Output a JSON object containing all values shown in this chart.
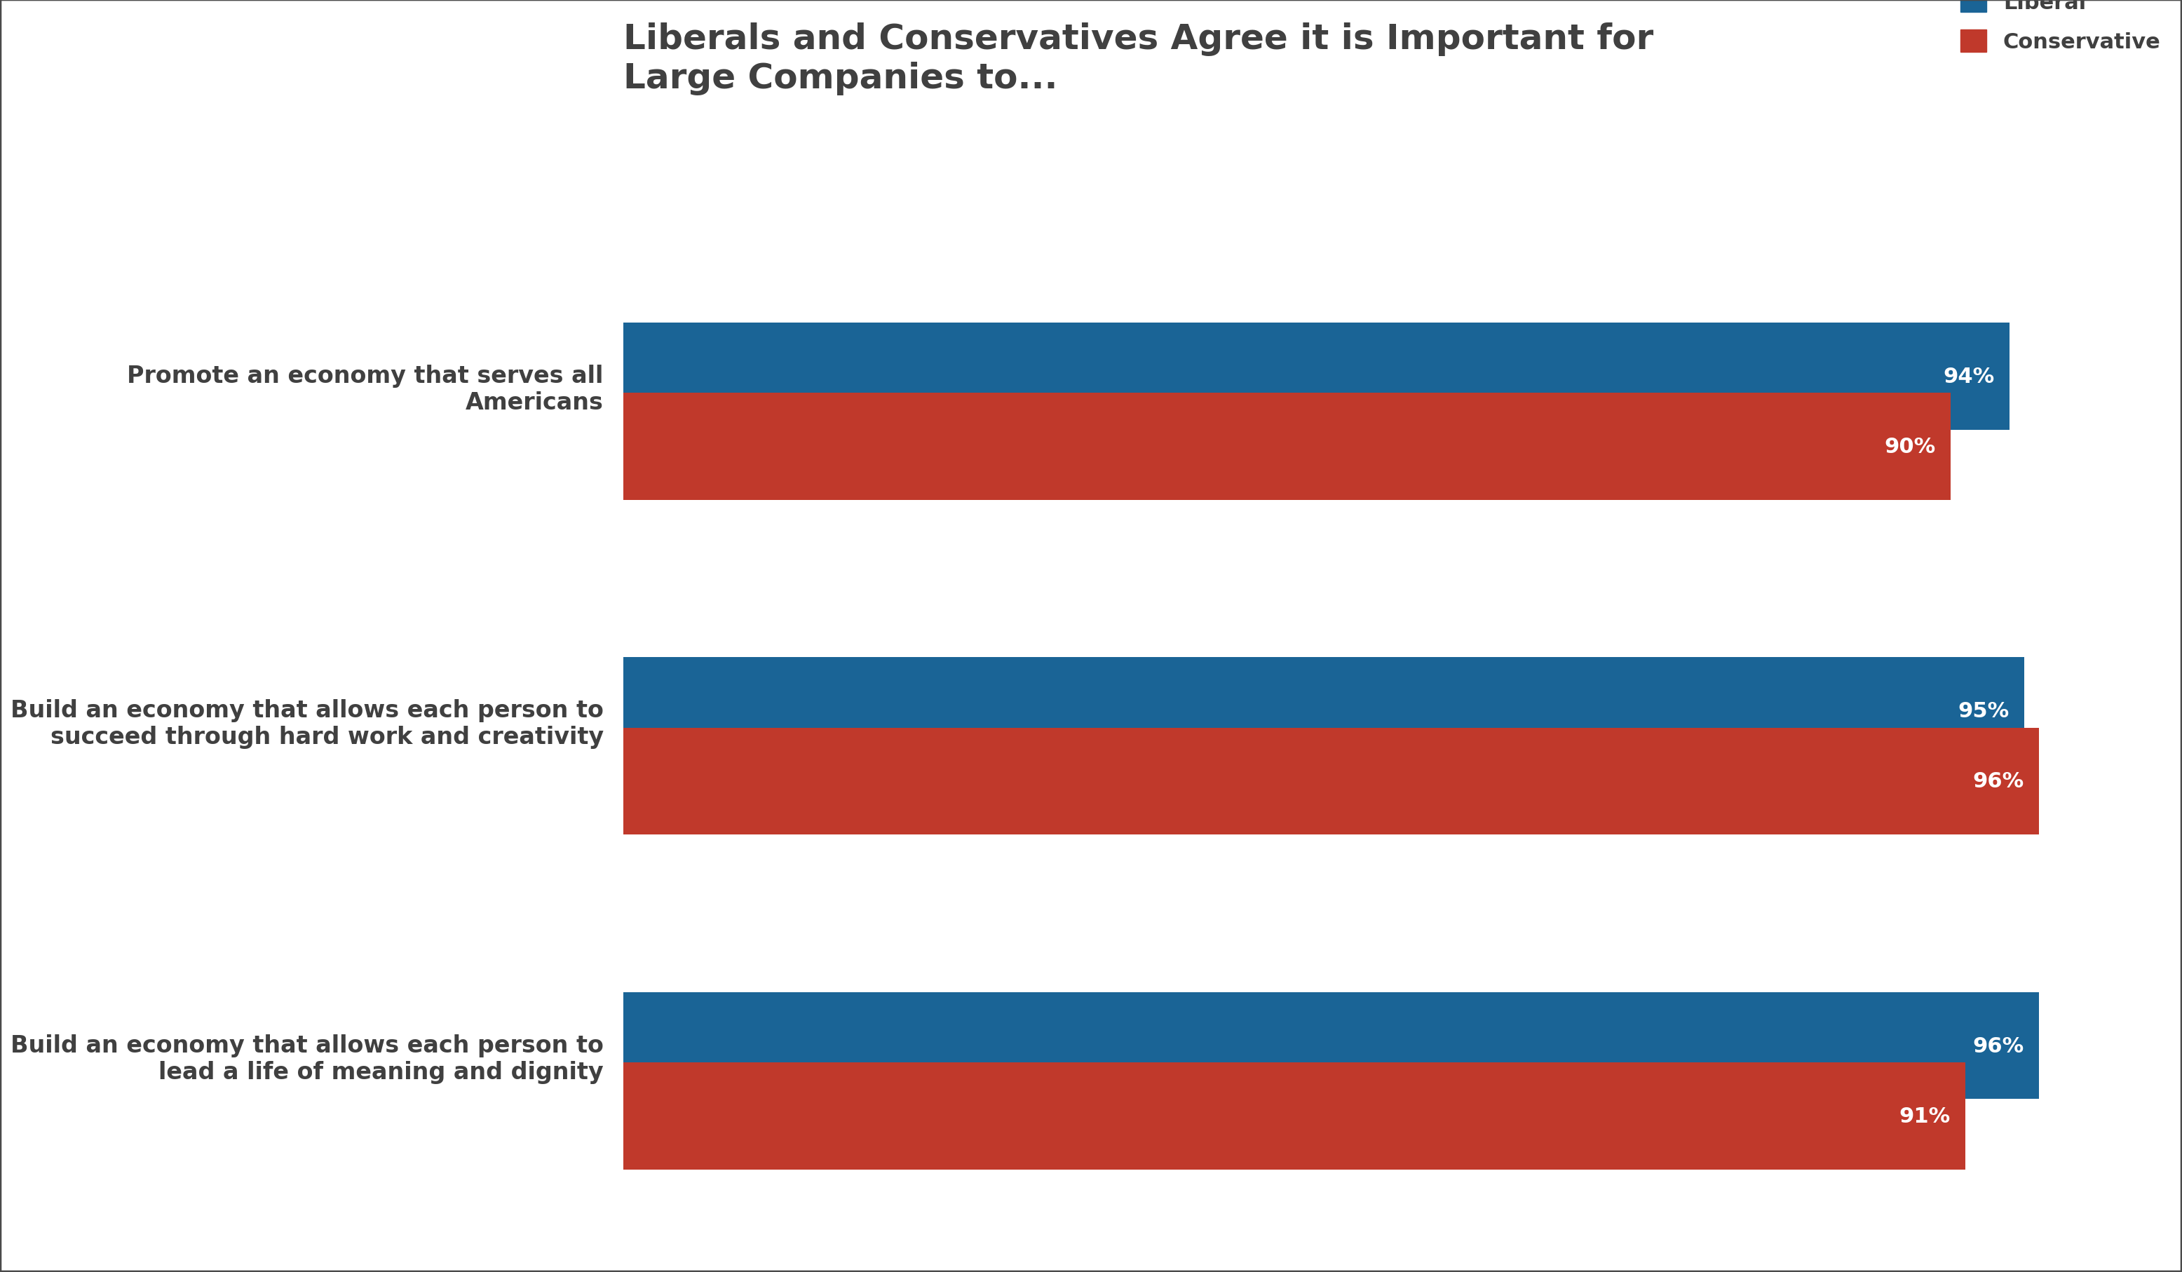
{
  "title": "Liberals and Conservatives Agree it is Important for\nLarge Companies to...",
  "categories": [
    "Promote an economy that serves all\nAmericans",
    "Build an economy that allows each person to\nsucceed through hard work and creativity",
    "Build an economy that allows each person to\nlead a life of meaning and dignity"
  ],
  "liberal_values": [
    94,
    95,
    96
  ],
  "conservative_values": [
    90,
    96,
    91
  ],
  "liberal_color": "#1a6496",
  "conservative_color": "#c0392b",
  "background_color": "#ffffff",
  "title_color": "#404040",
  "label_color": "#404040",
  "bar_text_color": "#ffffff",
  "legend_liberal": "Liberal",
  "legend_conservative": "Conservative",
  "title_fontsize": 36,
  "label_fontsize": 24,
  "bar_label_fontsize": 22,
  "legend_fontsize": 22,
  "bar_height": 0.32,
  "bar_gap": 0.05,
  "xlim": [
    0,
    105
  ],
  "border_color": "#4a4a4a"
}
